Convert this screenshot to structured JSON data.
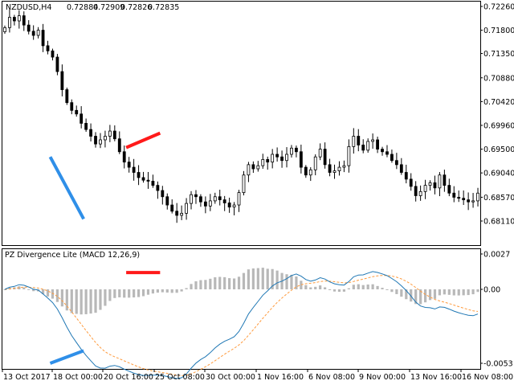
{
  "chart_data": [
    {
      "type": "candlestick",
      "symbol_header": "NZDUSD,H4",
      "ohlc_header": [
        "0.72884",
        "0.72909",
        "0.72826",
        "0.72835"
      ],
      "ylim": [
        0.6801,
        0.7236
      ],
      "y_tick_labels": [
        "0.72260",
        "0.71800",
        "0.71350",
        "0.70880",
        "0.70420",
        "0.69960",
        "0.69500",
        "0.69040",
        "0.68570",
        "0.68110"
      ],
      "close_series": [
        0.7185,
        0.7205,
        0.7198,
        0.7208,
        0.719,
        0.7178,
        0.717,
        0.718,
        0.715,
        0.714,
        0.7128,
        0.71,
        0.7065,
        0.704,
        0.7025,
        0.7018,
        0.7,
        0.6988,
        0.6975,
        0.696,
        0.6968,
        0.6975,
        0.6985,
        0.697,
        0.6945,
        0.6925,
        0.6915,
        0.6905,
        0.6895,
        0.689,
        0.6888,
        0.688,
        0.687,
        0.6858,
        0.6842,
        0.683,
        0.6822,
        0.6826,
        0.6845,
        0.6862,
        0.6858,
        0.6848,
        0.684,
        0.685,
        0.6858,
        0.6852,
        0.6846,
        0.6838,
        0.6842,
        0.6866,
        0.69,
        0.692,
        0.6912,
        0.6918,
        0.693,
        0.6925,
        0.694,
        0.6935,
        0.6928,
        0.694,
        0.6952,
        0.6945,
        0.6915,
        0.69,
        0.691,
        0.6935,
        0.695,
        0.692,
        0.6905,
        0.6908,
        0.6915,
        0.6918,
        0.6955,
        0.6975,
        0.6958,
        0.6948,
        0.6965,
        0.6968,
        0.695,
        0.6945,
        0.694,
        0.6928,
        0.692,
        0.6905,
        0.6892,
        0.6878,
        0.686,
        0.6868,
        0.688,
        0.6885,
        0.6875,
        0.69,
        0.688,
        0.6865,
        0.6857,
        0.6855,
        0.6852,
        0.6848,
        0.685,
        0.6865
      ],
      "divergence_lines": [
        {
          "from": [
            9.5,
            0.6935
          ],
          "to": [
            16.5,
            0.6815
          ],
          "color": "#2f8fe8"
        },
        {
          "from": [
            25.4,
            0.6953
          ],
          "to": [
            32.5,
            0.6981
          ],
          "color": "#ff1a1a"
        }
      ]
    },
    {
      "type": "bar+line",
      "title": "PZ Divergence Lite (MACD 12,26,9)",
      "ylim": [
        -0.0058,
        0.0029
      ],
      "y_tick_labels": [
        "0.0027",
        "0.00",
        "-0.0053"
      ],
      "x_tick_labels": [
        "13 Oct 2017",
        "18 Oct 00:00",
        "20 Oct 16:00",
        "25 Oct 08:00",
        "30 Oct 00:00",
        "1 Nov 16:00",
        "6 Nov 08:00",
        "9 Nov 00:00",
        "13 Nov 16:00",
        "16 Nov 08:00"
      ],
      "macd_line_color": "#1f77b4",
      "signal_line_color": "#ff9a3c",
      "histogram_color": "#b8b8b8",
      "divergence_lines": [
        {
          "from": [
            9.5,
            -0.0053
          ],
          "to": [
            16.5,
            -0.0044
          ],
          "color": "#2f8fe8"
        },
        {
          "from": [
            25.4,
            0.00128
          ],
          "to": [
            32.5,
            0.00128
          ],
          "color": "#ff1a1a"
        }
      ]
    }
  ]
}
